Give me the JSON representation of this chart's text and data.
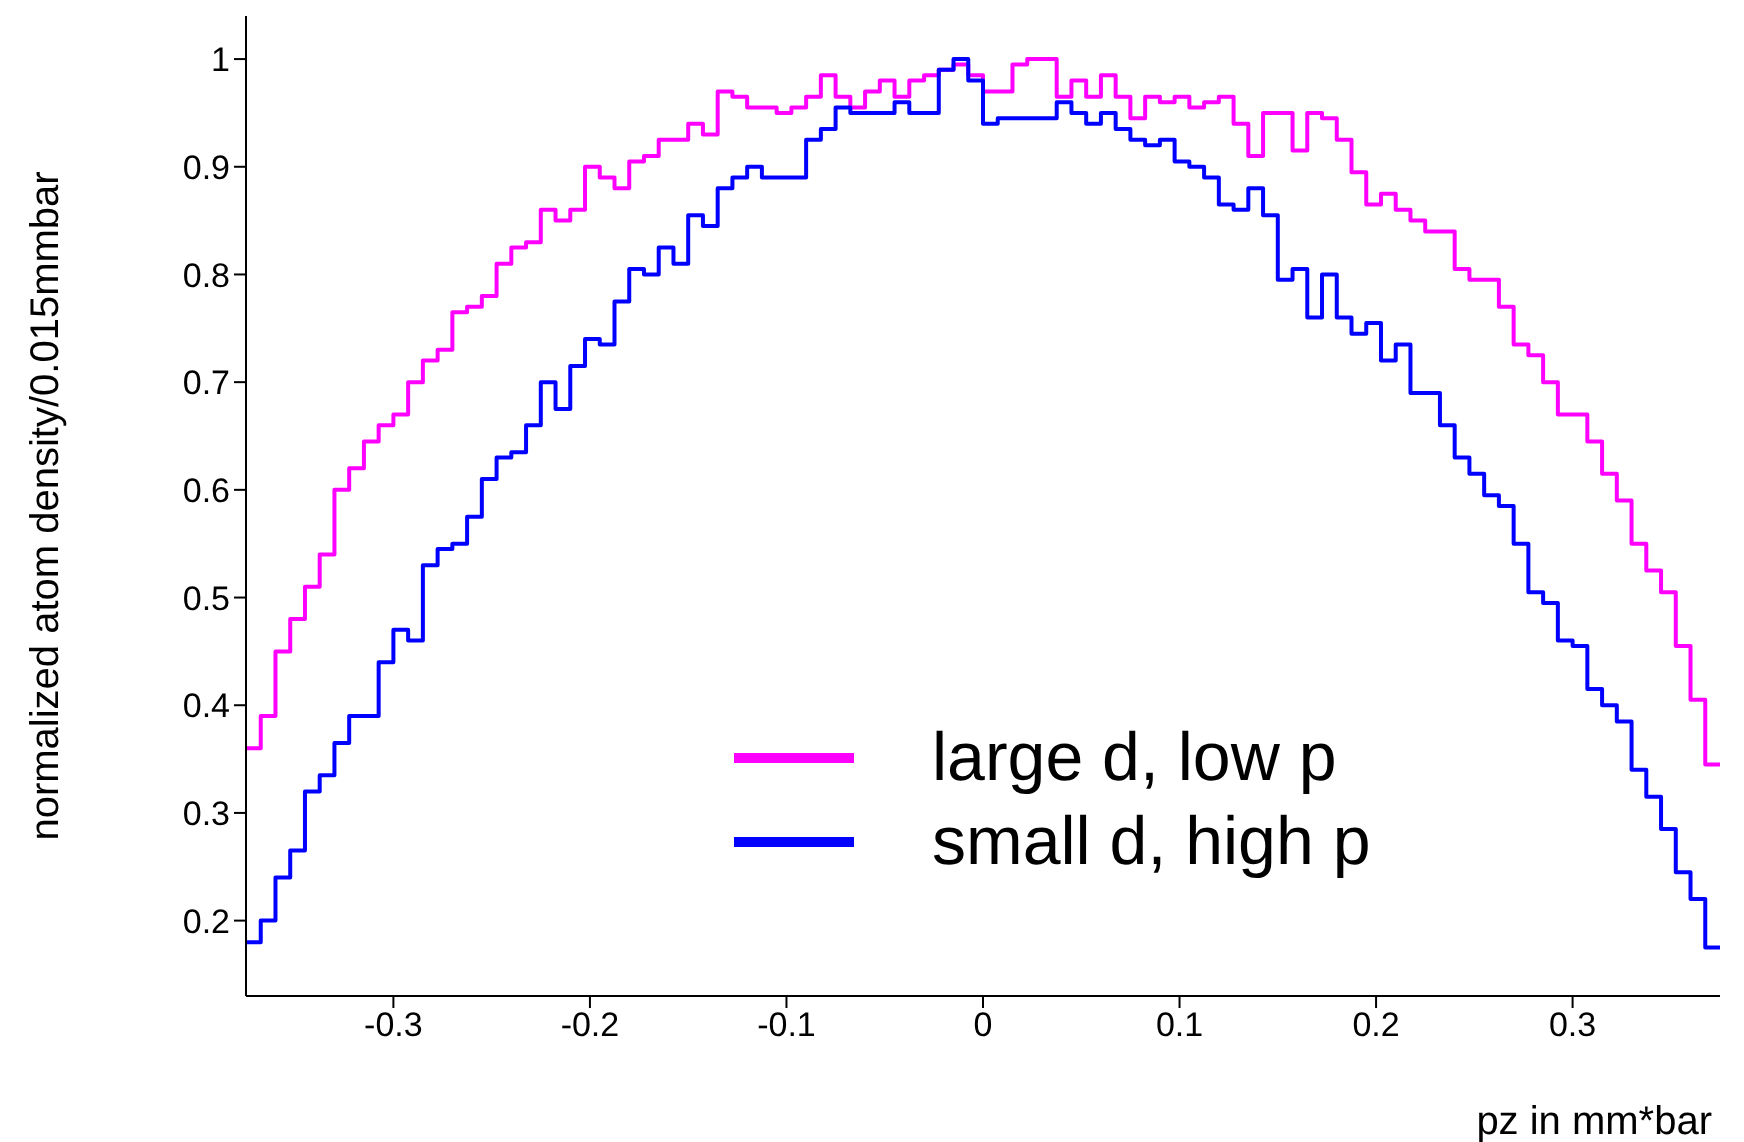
{
  "chart_data": {
    "type": "histogram",
    "xlabel": "pz in mm*bar",
    "ylabel": "normalized atom density/0.015mmbar",
    "bins": [
      -0.375,
      -0.3675,
      -0.36,
      -0.3525,
      -0.345,
      -0.3375,
      -0.33,
      -0.3225,
      -0.315,
      -0.3075,
      -0.3,
      -0.2925,
      -0.285,
      -0.2775,
      -0.27,
      -0.2625,
      -0.255,
      -0.2475,
      -0.24,
      -0.2325,
      -0.225,
      -0.2175,
      -0.21,
      -0.2025,
      -0.195,
      -0.1875,
      -0.18,
      -0.1725,
      -0.165,
      -0.1575,
      -0.15,
      -0.1425,
      -0.135,
      -0.1275,
      -0.12,
      -0.1125,
      -0.105,
      -0.0975,
      -0.09,
      -0.0825,
      -0.075,
      -0.0675,
      -0.06,
      -0.0525,
      -0.045,
      -0.0375,
      -0.03,
      -0.0225,
      -0.015,
      -0.0075,
      0,
      0.0075,
      0.015,
      0.0225,
      0.03,
      0.0375,
      0.045,
      0.0525,
      0.06,
      0.0675,
      0.075,
      0.0825,
      0.09,
      0.0975,
      0.105,
      0.1125,
      0.12,
      0.1275,
      0.135,
      0.1425,
      0.15,
      0.1575,
      0.165,
      0.1725,
      0.18,
      0.1875,
      0.195,
      0.2025,
      0.21,
      0.2175,
      0.225,
      0.2325,
      0.24,
      0.2475,
      0.255,
      0.2625,
      0.27,
      0.2775,
      0.285,
      0.2925,
      0.3,
      0.3075,
      0.315,
      0.3225,
      0.33,
      0.3375,
      0.345,
      0.3525,
      0.36,
      0.3675,
      0.375
    ],
    "series": [
      {
        "name": "large d, low p",
        "color": "#ff00ff",
        "values": [
          0.36,
          0.39,
          0.45,
          0.48,
          0.51,
          0.54,
          0.6,
          0.62,
          0.645,
          0.66,
          0.67,
          0.7,
          0.72,
          0.73,
          0.765,
          0.77,
          0.78,
          0.81,
          0.825,
          0.83,
          0.86,
          0.85,
          0.86,
          0.9,
          0.89,
          0.88,
          0.905,
          0.91,
          0.925,
          0.925,
          0.94,
          0.93,
          0.97,
          0.965,
          0.955,
          0.955,
          0.95,
          0.955,
          0.965,
          0.985,
          0.965,
          0.955,
          0.97,
          0.98,
          0.965,
          0.98,
          0.985,
          0.99,
          0.995,
          0.985,
          0.97,
          0.97,
          0.995,
          1.0,
          1.0,
          0.965,
          0.98,
          0.965,
          0.985,
          0.965,
          0.945,
          0.965,
          0.96,
          0.965,
          0.955,
          0.96,
          0.965,
          0.94,
          0.91,
          0.95,
          0.95,
          0.915,
          0.95,
          0.945,
          0.925,
          0.895,
          0.865,
          0.875,
          0.86,
          0.85,
          0.84,
          0.84,
          0.805,
          0.795,
          0.795,
          0.77,
          0.735,
          0.725,
          0.7,
          0.67,
          0.67,
          0.645,
          0.615,
          0.59,
          0.55,
          0.525,
          0.505,
          0.455,
          0.405,
          0.345
        ]
      },
      {
        "name": "small d, high p",
        "color": "#0000ff",
        "values": [
          0.18,
          0.2,
          0.24,
          0.265,
          0.32,
          0.335,
          0.365,
          0.39,
          0.39,
          0.44,
          0.47,
          0.46,
          0.53,
          0.545,
          0.55,
          0.575,
          0.61,
          0.63,
          0.635,
          0.66,
          0.7,
          0.675,
          0.715,
          0.74,
          0.735,
          0.775,
          0.805,
          0.8,
          0.825,
          0.81,
          0.855,
          0.845,
          0.88,
          0.89,
          0.9,
          0.89,
          0.89,
          0.89,
          0.925,
          0.935,
          0.955,
          0.95,
          0.95,
          0.95,
          0.96,
          0.95,
          0.95,
          0.99,
          1.0,
          0.98,
          0.94,
          0.945,
          0.945,
          0.945,
          0.945,
          0.96,
          0.95,
          0.94,
          0.95,
          0.935,
          0.925,
          0.92,
          0.925,
          0.905,
          0.9,
          0.89,
          0.865,
          0.86,
          0.88,
          0.855,
          0.795,
          0.805,
          0.76,
          0.8,
          0.76,
          0.745,
          0.755,
          0.72,
          0.735,
          0.69,
          0.69,
          0.66,
          0.63,
          0.615,
          0.595,
          0.585,
          0.55,
          0.505,
          0.495,
          0.46,
          0.455,
          0.415,
          0.4,
          0.385,
          0.34,
          0.315,
          0.285,
          0.245,
          0.22,
          0.175
        ]
      }
    ],
    "xlim": [
      -0.375,
      0.375
    ],
    "xticks": [
      -0.3,
      -0.2,
      -0.1,
      0,
      0.1,
      0.2,
      0.3
    ],
    "ylim": [
      0.13,
      1.04
    ],
    "yticks": [
      0.2,
      0.3,
      0.4,
      0.5,
      0.6,
      0.7,
      0.8,
      0.9,
      1
    ],
    "legend": "bottom right",
    "grid": false
  }
}
